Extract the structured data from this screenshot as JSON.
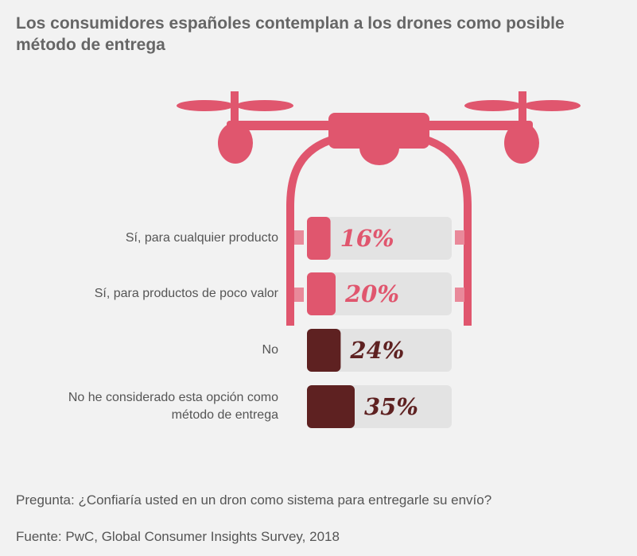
{
  "chart_data": {
    "type": "bar",
    "title": "Los consumidores españoles contemplan a los drones como posible método de entrega",
    "categories": [
      "Sí, para cualquier producto",
      "Sí, para productos de poco valor",
      "No",
      "No he considerado esta opción como método de entrega"
    ],
    "values": [
      16,
      20,
      24,
      35
    ],
    "value_labels": [
      "16%",
      "20%",
      "24%",
      "35%"
    ],
    "colors": [
      "#e0566e",
      "#e0566e",
      "#5e2121",
      "#5e2121"
    ],
    "note": "Pregunta: ¿Confiaría usted en un dron como sistema para entregarle su envío?",
    "source": "Fuente: PwC, Global Consumer Insights Survey, 2018"
  }
}
